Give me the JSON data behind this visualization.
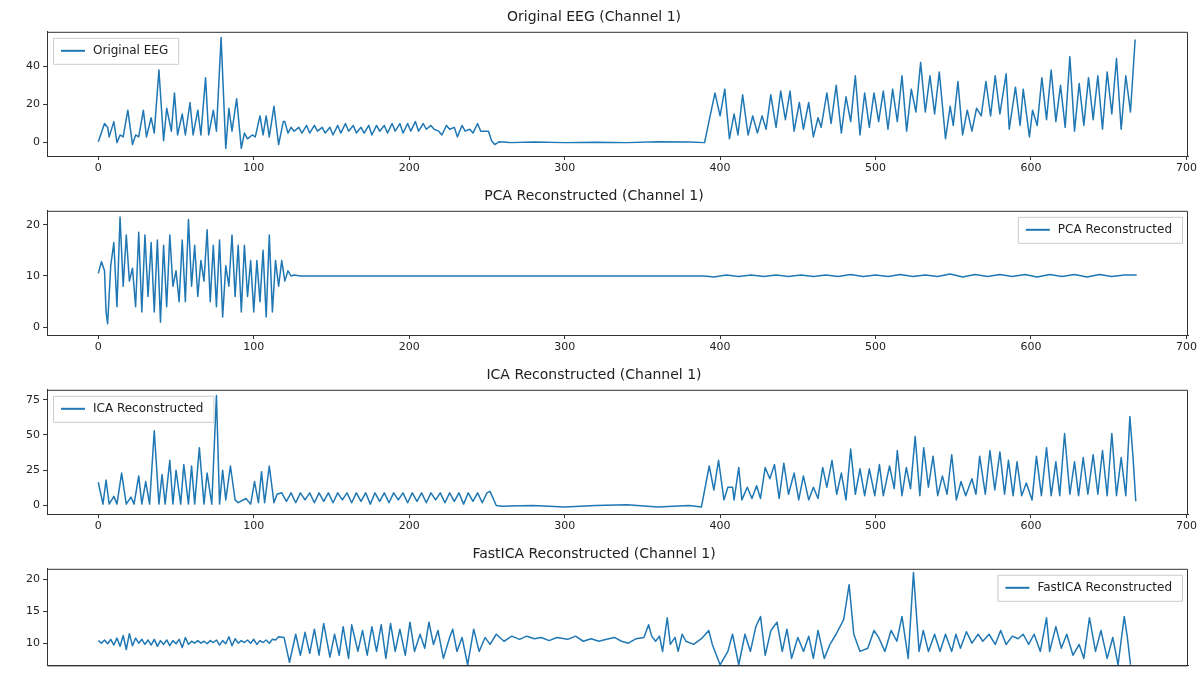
{
  "chart_data": [
    {
      "type": "line",
      "title": "Original EEG (Channel 1)",
      "legend": "top left",
      "grid": false,
      "marker": "none",
      "line_style": "solid",
      "xlim": [
        -33,
        701
      ],
      "xticks": [
        0,
        100,
        200,
        300,
        400,
        500,
        600,
        700
      ],
      "ylim": [
        -7,
        58
      ],
      "yticks": [
        0,
        20,
        40
      ],
      "series": [
        {
          "name": "Original EEG",
          "color": "#1f77b4",
          "x": [
            0,
            4,
            6,
            7,
            10,
            12,
            14,
            16,
            19,
            22,
            24,
            26,
            29,
            31,
            34,
            36,
            39,
            42,
            44,
            47,
            49,
            51,
            54,
            56,
            59,
            61,
            64,
            66,
            69,
            71,
            74,
            76,
            79,
            82,
            84,
            86,
            89,
            92,
            94,
            96,
            99,
            101,
            104,
            106,
            108,
            110,
            113,
            116,
            119,
            120,
            122,
            124,
            126,
            129,
            131,
            134,
            136,
            139,
            141,
            144,
            146,
            149,
            151,
            154,
            156,
            159,
            161,
            164,
            166,
            169,
            171,
            174,
            176,
            179,
            181,
            184,
            186,
            189,
            191,
            194,
            196,
            199,
            201,
            204,
            206,
            209,
            211,
            214,
            216,
            219,
            221,
            224,
            226,
            229,
            231,
            234,
            236,
            239,
            241,
            244,
            246,
            249,
            251,
            253,
            255,
            258,
            265,
            280,
            300,
            320,
            340,
            360,
            380,
            390,
            396.7,
            400,
            403,
            406,
            409,
            411.5,
            414.5,
            418,
            421,
            424,
            427,
            429.6,
            432.6,
            436,
            439,
            442,
            445,
            447.6,
            451,
            453.6,
            457,
            460,
            463,
            465,
            468.7,
            471.4,
            474.7,
            478,
            481,
            484,
            487,
            490,
            493,
            496,
            499,
            502,
            505,
            508,
            511,
            514,
            517,
            520,
            523,
            526,
            529,
            532,
            535,
            538,
            541,
            545,
            548,
            550,
            553,
            556,
            559,
            562,
            565,
            568,
            571,
            574,
            577,
            580,
            584,
            586,
            590,
            593,
            595,
            599,
            601,
            604,
            607,
            610,
            613,
            616,
            619,
            622,
            625,
            628,
            631,
            634,
            637,
            640,
            643,
            646,
            649,
            652,
            655,
            658,
            661,
            664,
            667
          ],
          "values": [
            0.5,
            10,
            8,
            3,
            11,
            0,
            4,
            3,
            17,
            -1,
            4,
            3,
            17,
            3,
            13,
            5,
            38,
            1,
            18,
            6,
            26,
            4,
            15,
            4,
            21,
            4,
            17,
            4,
            34,
            4,
            17,
            6,
            55,
            -3,
            18,
            6,
            23,
            -3,
            5,
            2,
            4,
            3,
            14,
            4,
            14,
            3,
            19,
            -1,
            11,
            11,
            5,
            8,
            6,
            8,
            5,
            9,
            5,
            9,
            6,
            8,
            5,
            8,
            4,
            9,
            5,
            10,
            6,
            9,
            5,
            8,
            5,
            9,
            4,
            9,
            6,
            9,
            5,
            10,
            6,
            10,
            5,
            10,
            6,
            11,
            6,
            10,
            7,
            9,
            7,
            6,
            4,
            9,
            7,
            8,
            3,
            9,
            6,
            7,
            5,
            10,
            6,
            6,
            6,
            1,
            -1,
            0.5,
            0,
            0.3,
            0,
            0.2,
            0,
            0.5,
            0.3,
            0,
            26,
            14,
            28,
            2,
            15,
            4,
            25,
            4,
            14,
            5,
            14,
            7,
            25,
            8,
            27,
            12,
            27,
            6,
            21,
            7,
            21,
            3,
            13,
            8,
            26,
            10,
            30,
            5,
            24,
            11,
            35,
            4,
            26,
            8,
            26,
            11,
            27,
            7,
            28,
            11,
            35,
            6,
            28,
            16,
            42,
            16,
            35,
            15,
            37,
            2,
            19,
            9,
            32,
            4,
            17,
            6,
            18,
            14,
            32,
            14,
            35,
            15,
            36,
            7,
            29,
            9,
            28,
            3,
            17,
            9,
            34,
            12,
            38,
            11,
            30,
            8,
            45,
            6,
            31,
            9,
            34,
            12,
            35,
            7,
            37,
            15,
            44,
            7,
            35,
            16,
            54
          ]
        }
      ]
    },
    {
      "type": "line",
      "title": "PCA Reconstructed (Channel 1)",
      "legend": "top right",
      "grid": false,
      "marker": "none",
      "line_style": "solid",
      "xlim": [
        -33,
        701
      ],
      "xticks": [
        0,
        100,
        200,
        300,
        400,
        500,
        600,
        700
      ],
      "ylim": [
        -1.5,
        22.7
      ],
      "yticks": [
        0,
        10,
        20
      ],
      "series": [
        {
          "name": "PCA Reconstructed",
          "color": "#1f77b4",
          "x": [
            0,
            2,
            4,
            5,
            6,
            8,
            10,
            12,
            14,
            16,
            18,
            20,
            22,
            24,
            26,
            28,
            30,
            32,
            34,
            36,
            38,
            40,
            42,
            44,
            46,
            48,
            50,
            52,
            54,
            56,
            58,
            60,
            62,
            64,
            66,
            68,
            70,
            72,
            74,
            76,
            78,
            80,
            82,
            84,
            86,
            88,
            90,
            92,
            94,
            96,
            98,
            100,
            102,
            104,
            106,
            108,
            110,
            112,
            114,
            116,
            118,
            120,
            122,
            124,
            126,
            130,
            200,
            300,
            390,
            396,
            404,
            412,
            420,
            428,
            436,
            444,
            452,
            460,
            468,
            476,
            484,
            492,
            500,
            508,
            516,
            524,
            532,
            540,
            548,
            556,
            564,
            572,
            580,
            588,
            596,
            604,
            612,
            620,
            628,
            636,
            644,
            652,
            660,
            668
          ],
          "values": [
            10.5,
            12.8,
            11,
            3,
            0.7,
            12,
            16.5,
            4,
            21.5,
            8,
            18,
            9,
            11.5,
            4,
            18.5,
            3,
            18,
            6,
            16.5,
            3,
            17,
            1,
            16,
            4,
            18,
            8,
            11,
            5,
            17,
            5,
            21,
            8,
            16,
            6,
            13,
            9,
            19,
            5,
            16,
            4,
            17,
            2,
            12,
            8,
            18,
            6,
            16,
            3,
            16,
            6,
            13,
            3,
            13,
            5,
            15,
            2,
            18,
            3,
            13,
            8,
            13,
            9,
            11,
            10,
            10.2,
            10,
            10,
            10,
            10,
            9.8,
            10.2,
            9.9,
            10.2,
            9.9,
            10.2,
            9.9,
            10.2,
            9.9,
            10.2,
            9.9,
            10.3,
            9.9,
            10.2,
            9.9,
            10.3,
            9.9,
            10.2,
            9.9,
            10.4,
            9.8,
            10.3,
            9.9,
            10.3,
            9.9,
            10.3,
            9.8,
            10.3,
            9.9,
            10.3,
            9.8,
            10.3,
            9.9,
            10.2,
            10.2
          ]
        }
      ]
    },
    {
      "type": "line",
      "title": "ICA Reconstructed (Channel 1)",
      "legend": "top left",
      "grid": false,
      "marker": "none",
      "line_style": "solid",
      "xlim": [
        -33,
        701
      ],
      "xticks": [
        0,
        100,
        200,
        300,
        400,
        500,
        600,
        700
      ],
      "ylim": [
        -6,
        82
      ],
      "yticks": [
        0,
        25,
        50,
        75
      ],
      "series": [
        {
          "name": "ICA Reconstructed",
          "color": "#1f77b4",
          "x": [
            0,
            3,
            5,
            7,
            10,
            12,
            15,
            18,
            21,
            23,
            26,
            28,
            30.5,
            33,
            36,
            39,
            41,
            43,
            46,
            48,
            50,
            53,
            55,
            58,
            60,
            62,
            65,
            68,
            70,
            73,
            76,
            78,
            80,
            82,
            85,
            88,
            90,
            95,
            98,
            100.5,
            103,
            105,
            107,
            110,
            113,
            115,
            118,
            121,
            124,
            127,
            130,
            133,
            136,
            139,
            142,
            145,
            148,
            151,
            154,
            157,
            160,
            163,
            166,
            169,
            172,
            175,
            178,
            181,
            184,
            187,
            190,
            193,
            196,
            199,
            202,
            205,
            208,
            211,
            214,
            217,
            220,
            223,
            226,
            229,
            232,
            235,
            238,
            241,
            244,
            247,
            250,
            252,
            256,
            260,
            280,
            300,
            320,
            340,
            360,
            380,
            388,
            393,
            396,
            399,
            402.5,
            405,
            408,
            409,
            412,
            414,
            417.5,
            420.5,
            423.5,
            426,
            429,
            432,
            435,
            438,
            441,
            444,
            447.6,
            450.6,
            453.6,
            457,
            460,
            463,
            466,
            468.7,
            472,
            475,
            478,
            481,
            484,
            487,
            490,
            493,
            496,
            499.5,
            502.5,
            505,
            509,
            512,
            514,
            517,
            519.8,
            522.5,
            525.5,
            528.5,
            531,
            534,
            537,
            540,
            543,
            546,
            549,
            552,
            555,
            558,
            562,
            564.6,
            567,
            570.6,
            573.6,
            576.7,
            580,
            583,
            585.5,
            588.5,
            591,
            594,
            597,
            600.7,
            603.5,
            606.7,
            610,
            613,
            616,
            618.5,
            621.6,
            625,
            628,
            630.6,
            633.6,
            636.6,
            640,
            643,
            646,
            649,
            652,
            655,
            658,
            661,
            663.6,
            665.6,
            667.4
          ],
          "values": [
            16.5,
            1,
            18,
            1,
            6.5,
            1,
            23,
            1,
            6,
            1,
            21,
            1,
            17,
            1,
            53,
            1,
            22,
            1,
            32,
            1,
            25,
            1,
            29,
            1,
            28,
            1,
            41,
            1,
            23,
            1,
            78,
            1,
            25,
            4,
            28,
            4,
            2,
            5,
            1,
            17,
            2,
            24,
            2,
            28,
            2,
            8,
            9,
            3,
            9,
            2,
            9,
            4,
            9,
            2,
            9,
            3,
            9,
            2,
            9,
            4,
            9,
            2,
            9,
            3,
            9,
            1,
            9,
            3,
            9,
            2,
            9,
            4,
            9,
            2,
            9,
            3,
            9,
            2,
            9,
            4,
            9,
            2,
            9,
            3,
            9,
            1,
            9,
            3,
            9,
            2,
            9,
            10,
            0,
            -0.5,
            0,
            -1,
            0,
            0.5,
            -1,
            0,
            -1,
            28,
            11,
            32,
            4,
            13,
            13,
            4,
            27,
            4,
            13,
            5,
            14,
            5,
            27,
            19,
            29,
            5,
            30,
            8,
            23,
            4,
            21,
            4,
            13,
            5,
            27,
            13,
            32,
            8,
            23,
            4,
            40,
            8,
            26,
            7,
            26,
            7,
            29,
            7,
            28,
            12,
            39,
            7,
            27,
            12,
            49,
            7,
            41,
            13,
            35,
            7,
            21,
            8,
            36,
            4,
            17,
            7,
            19,
            8,
            35,
            8,
            39,
            11,
            38,
            8,
            32,
            7,
            31,
            7,
            16,
            4,
            35,
            7,
            41,
            7,
            31,
            7,
            51,
            8,
            31,
            7,
            34,
            8,
            36,
            8,
            39,
            7,
            51,
            7,
            34,
            7,
            63,
            35,
            3
          ]
        }
      ]
    },
    {
      "type": "line",
      "title": "FastICA Reconstructed (Channel 1)",
      "legend": "top right",
      "grid": false,
      "marker": "none",
      "line_style": "solid",
      "tick_labels": "y",
      "xlim": [
        -33,
        701
      ],
      "xticks": [
        0,
        100,
        200,
        300,
        400,
        500,
        600,
        700
      ],
      "ylim": [
        6.5,
        21.7
      ],
      "yticks": [
        10,
        15,
        20
      ],
      "series": [
        {
          "name": "FastICA Reconstructed",
          "color": "#1f77b4",
          "x": [
            0,
            2,
            4,
            6,
            8,
            10,
            12,
            14,
            16,
            18,
            20,
            22,
            24,
            26,
            28,
            30,
            32,
            34,
            36,
            38,
            40,
            42,
            44,
            46,
            48,
            50,
            52,
            54,
            56,
            58,
            60,
            62,
            64,
            66,
            68,
            70,
            72,
            74,
            76,
            78,
            80,
            82,
            84,
            86,
            88,
            90,
            92,
            94,
            96,
            98,
            100,
            102,
            104,
            106,
            108,
            110,
            112,
            114,
            116,
            119.5,
            123,
            127,
            130,
            133,
            136,
            139,
            142,
            145,
            149,
            152,
            155,
            157.5,
            161,
            163,
            167,
            170,
            173,
            176,
            179,
            182,
            185,
            188,
            191,
            194,
            197.5,
            200.5,
            203.4,
            207,
            210,
            212.7,
            215.6,
            218.5,
            222,
            226,
            228,
            230.7,
            234,
            237.6,
            241.5,
            245,
            248.8,
            252,
            256,
            261,
            266,
            271,
            275.6,
            280.5,
            285,
            290,
            295,
            302,
            307,
            312,
            317,
            322,
            327,
            332,
            336.6,
            341,
            346,
            351,
            354,
            356,
            358.5,
            361,
            363,
            366,
            368,
            371,
            373,
            375.6,
            378,
            383,
            388,
            392.7,
            395,
            400,
            405,
            408,
            412,
            416,
            419.5,
            423,
            426,
            429,
            432.7,
            436.6,
            440,
            443,
            446,
            450,
            453.7,
            457,
            460,
            463,
            467,
            470.7,
            474.6,
            479.5,
            483,
            486,
            490,
            495,
            499,
            502,
            506,
            510,
            513.7,
            517,
            521,
            524.4,
            528,
            530.7,
            534,
            538,
            541.5,
            545,
            549,
            551.7,
            554.6,
            558.5,
            562,
            566,
            569,
            573,
            577,
            580.5,
            584,
            588,
            591.7,
            595,
            598.5,
            602,
            606,
            610,
            612,
            616,
            619.5,
            623,
            627,
            631,
            634,
            637.6,
            641.5,
            645,
            649,
            652.6,
            656,
            660,
            662,
            664
          ],
          "values": [
            10.4,
            10,
            10.5,
            9.9,
            10.6,
            9.7,
            10.8,
            9.5,
            11.2,
            9,
            11.5,
            9.6,
            10.8,
            10,
            10.6,
            9.8,
            10.5,
            9.7,
            10.6,
            9.5,
            10.4,
            9.8,
            10.5,
            9.6,
            10.4,
            9.9,
            10.6,
            9.3,
            10.9,
            9.8,
            10.3,
            10,
            10.4,
            10,
            10.3,
            9.9,
            10.4,
            10.1,
            10.5,
            9.7,
            10.4,
            9.9,
            11,
            9.6,
            10.7,
            10,
            10.4,
            10.1,
            10.5,
            10,
            10.6,
            9.8,
            10.4,
            10.1,
            10.5,
            10,
            10.6,
            10.5,
            11,
            10.9,
            7,
            11.4,
            8.1,
            11.7,
            8.4,
            12.2,
            8.1,
            13.1,
            7.8,
            11.4,
            8.1,
            12.6,
            7.6,
            12.9,
            8.7,
            12,
            8.1,
            12.6,
            8.7,
            12.9,
            7.6,
            13.1,
            8.7,
            12.2,
            8.1,
            13.3,
            8.7,
            11.4,
            9.2,
            13.3,
            9.8,
            12,
            7.6,
            10.9,
            12.2,
            8.7,
            10.9,
            6.6,
            12.2,
            8.7,
            10.9,
            9.8,
            11.4,
            10.3,
            11.1,
            10.6,
            11.1,
            10.7,
            10.9,
            10.4,
            10.9,
            10.6,
            11.1,
            10.3,
            10.7,
            10.3,
            10.6,
            10.9,
            10.3,
            10,
            10.7,
            10.9,
            12.9,
            11.1,
            10.3,
            11.1,
            8.7,
            14,
            9.8,
            10.9,
            8.7,
            11.4,
            10.3,
            9.8,
            10.7,
            12,
            9.8,
            6.6,
            8.7,
            11.4,
            6.6,
            11.4,
            8.7,
            12.6,
            14.2,
            8.1,
            12,
            13.3,
            8.7,
            12.2,
            7.6,
            10.9,
            8.7,
            11.1,
            7.6,
            12,
            7.6,
            9.8,
            11.4,
            13.7,
            19.2,
            11.4,
            8.7,
            9.2,
            12,
            10.9,
            8.7,
            12,
            10.3,
            14.2,
            7.6,
            21.1,
            8.7,
            12,
            8.7,
            11.4,
            8.7,
            11.4,
            8.7,
            11.4,
            9.2,
            11.8,
            10,
            11.4,
            10.3,
            11.4,
            9.8,
            12,
            9.8,
            11.1,
            10.7,
            11.4,
            9.8,
            11.4,
            8.7,
            14,
            8.7,
            12.6,
            9.2,
            11.4,
            8.1,
            9.8,
            7.6,
            14,
            8.7,
            12,
            7.6,
            10.9,
            6.6,
            14.2,
            10.9,
            6.6
          ]
        }
      ]
    }
  ]
}
